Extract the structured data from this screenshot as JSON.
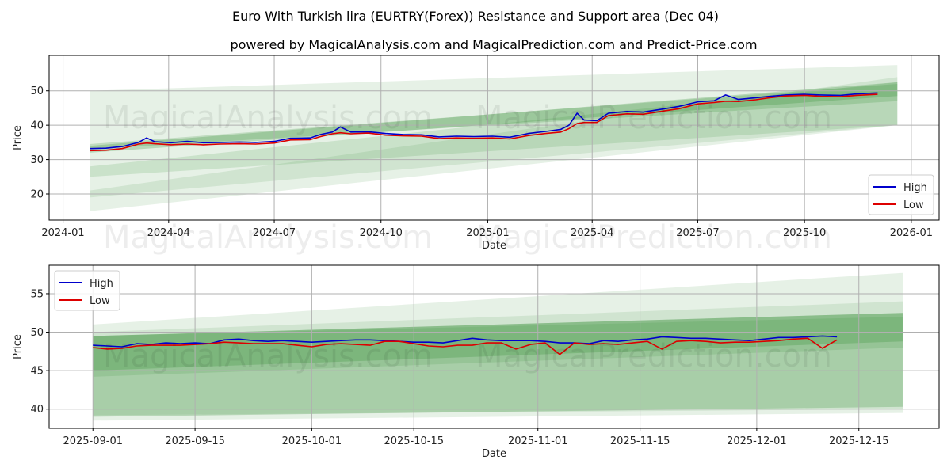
{
  "title": "Euro With Turkish lira (EURTRY(Forex)) Resistance and Support area (Dec 04)",
  "subtitle": "powered by MagicalAnalysis.com and MagicalPrediction.com and Predict-Price.com",
  "watermarks": [
    "MagicalAnalysis.com",
    "MagicalPrediction.com"
  ],
  "colors": {
    "high": "#0000cc",
    "low": "#dd0000",
    "band": "#2e8b2e",
    "grid": "#b0b0b0"
  },
  "chart_data": [
    {
      "type": "line",
      "xlabel": "Date",
      "ylabel": "Price",
      "ylim": [
        12.4,
        60.3
      ],
      "xlim": [
        "2023-12-20",
        "2026-01-25"
      ],
      "xticks": [
        "2024-01",
        "2024-04",
        "2024-07",
        "2024-10",
        "2025-01",
        "2025-04",
        "2025-07",
        "2025-10",
        "2026-01"
      ],
      "yticks": [
        20,
        30,
        40,
        50
      ],
      "legend": {
        "position": "lower-right",
        "entries": [
          "High",
          "Low"
        ]
      },
      "grid": true,
      "band_range": [
        "2024-01-24",
        "2025-12-20"
      ],
      "bands": [
        {
          "start": [
            15,
            50
          ],
          "end": [
            40,
            57.5
          ],
          "alpha": 0.12
        },
        {
          "start": [
            19,
            21
          ],
          "end": [
            40,
            54
          ],
          "alpha": 0.12
        },
        {
          "start": [
            25,
            28
          ],
          "end": [
            40,
            52.5
          ],
          "alpha": 0.15
        },
        {
          "start": [
            33,
            34.5
          ],
          "end": [
            47,
            52
          ],
          "alpha": 0.2
        },
        {
          "start": [
            32,
            34
          ],
          "end": [
            48.5,
            52.5
          ],
          "alpha": 0.25
        }
      ],
      "x": [
        "2024-01-24",
        "2024-02-07",
        "2024-02-21",
        "2024-03-06",
        "2024-03-13",
        "2024-03-20",
        "2024-04-03",
        "2024-04-17",
        "2024-05-01",
        "2024-05-15",
        "2024-06-01",
        "2024-06-15",
        "2024-07-01",
        "2024-07-15",
        "2024-08-01",
        "2024-08-10",
        "2024-08-20",
        "2024-08-27",
        "2024-09-05",
        "2024-09-20",
        "2024-10-05",
        "2024-10-20",
        "2024-11-05",
        "2024-11-20",
        "2024-12-05",
        "2024-12-20",
        "2025-01-05",
        "2025-01-20",
        "2025-02-05",
        "2025-02-20",
        "2025-03-05",
        "2025-03-12",
        "2025-03-19",
        "2025-03-25",
        "2025-04-05",
        "2025-04-15",
        "2025-05-01",
        "2025-05-15",
        "2025-06-01",
        "2025-06-15",
        "2025-07-01",
        "2025-07-15",
        "2025-07-25",
        "2025-08-05",
        "2025-08-20",
        "2025-09-01",
        "2025-09-15",
        "2025-10-01",
        "2025-10-15",
        "2025-11-01",
        "2025-11-15",
        "2025-12-03"
      ],
      "series": [
        {
          "name": "High",
          "values": [
            33.2,
            33.3,
            33.8,
            35.0,
            36.3,
            35.2,
            34.9,
            35.3,
            34.9,
            35.0,
            35.1,
            35.0,
            35.3,
            36.2,
            36.3,
            37.3,
            38.0,
            39.5,
            38.0,
            38.1,
            37.6,
            37.3,
            37.2,
            36.6,
            36.8,
            36.7,
            36.8,
            36.5,
            37.6,
            38.2,
            38.8,
            40.0,
            43.5,
            41.5,
            41.3,
            43.5,
            44.0,
            43.8,
            44.7,
            45.5,
            46.8,
            47.1,
            48.8,
            47.5,
            48.0,
            48.4,
            48.8,
            49.0,
            48.8,
            48.7,
            49.1,
            49.4
          ]
        },
        {
          "name": "Low",
          "values": [
            32.6,
            32.7,
            33.2,
            34.5,
            34.8,
            34.6,
            34.3,
            34.5,
            34.3,
            34.5,
            34.6,
            34.5,
            34.8,
            35.7,
            35.8,
            36.7,
            37.5,
            37.8,
            37.5,
            37.7,
            37.1,
            36.9,
            36.8,
            36.1,
            36.3,
            36.2,
            36.3,
            36.0,
            37.0,
            37.6,
            38.0,
            39.0,
            40.5,
            40.8,
            40.8,
            42.8,
            43.3,
            43.2,
            44.1,
            44.8,
            46.2,
            46.6,
            47.0,
            46.9,
            47.4,
            48.0,
            48.5,
            48.7,
            48.4,
            48.3,
            48.7,
            49.0
          ]
        }
      ]
    },
    {
      "type": "line",
      "xlabel": "Date",
      "ylabel": "Price",
      "ylim": [
        37.5,
        58.7
      ],
      "xlim": [
        "2025-08-26",
        "2025-12-26"
      ],
      "xticks": [
        "2025-09-01",
        "2025-09-15",
        "2025-10-01",
        "2025-10-15",
        "2025-11-01",
        "2025-11-15",
        "2025-12-01",
        "2025-12-15"
      ],
      "yticks": [
        40,
        45,
        50,
        55
      ],
      "legend": {
        "position": "upper-left",
        "entries": [
          "High",
          "Low"
        ]
      },
      "grid": true,
      "band_range": [
        "2025-09-01",
        "2025-12-21"
      ],
      "bands": [
        {
          "start": [
            38.5,
            51
          ],
          "end": [
            39.5,
            57.7
          ],
          "alpha": 0.12
        },
        {
          "start": [
            39.2,
            50
          ],
          "end": [
            40,
            54
          ],
          "alpha": 0.12
        },
        {
          "start": [
            39,
            49.5
          ],
          "end": [
            40.3,
            52.5
          ],
          "alpha": 0.25
        },
        {
          "start": [
            44.2,
            49.5
          ],
          "end": [
            48,
            52
          ],
          "alpha": 0.15
        },
        {
          "start": [
            45,
            49.5
          ],
          "end": [
            48.8,
            52.5
          ],
          "alpha": 0.25
        }
      ],
      "start_date": "2025-09-01",
      "step_days": 2,
      "series": [
        {
          "name": "High",
          "values": [
            48.3,
            48.2,
            48.1,
            48.5,
            48.4,
            48.6,
            48.5,
            48.6,
            48.5,
            49.0,
            49.1,
            48.9,
            48.8,
            48.9,
            48.8,
            48.7,
            48.8,
            48.9,
            49.0,
            49.0,
            48.9,
            48.8,
            48.7,
            48.7,
            48.6,
            48.9,
            49.2,
            49.0,
            48.9,
            48.9,
            48.9,
            48.8,
            48.6,
            48.6,
            48.5,
            48.9,
            48.8,
            49.0,
            49.1,
            49.4,
            49.3,
            49.2,
            49.2,
            49.1,
            49.0,
            48.9,
            49.1,
            49.3,
            49.3,
            49.4,
            49.5,
            49.4
          ]
        },
        {
          "name": "Low",
          "values": [
            48.0,
            47.8,
            47.9,
            48.2,
            48.3,
            48.3,
            48.3,
            48.4,
            48.5,
            48.7,
            48.6,
            48.5,
            48.5,
            48.5,
            48.3,
            48.1,
            48.4,
            48.5,
            48.4,
            48.3,
            48.8,
            48.8,
            48.5,
            48.2,
            48.1,
            48.3,
            48.3,
            48.6,
            48.6,
            47.8,
            48.4,
            48.6,
            47.1,
            48.6,
            48.4,
            48.5,
            48.4,
            48.6,
            48.8,
            47.8,
            48.8,
            48.9,
            48.8,
            48.6,
            48.7,
            48.7,
            48.8,
            48.9,
            49.1,
            49.2,
            47.9,
            49.0
          ]
        }
      ]
    }
  ]
}
